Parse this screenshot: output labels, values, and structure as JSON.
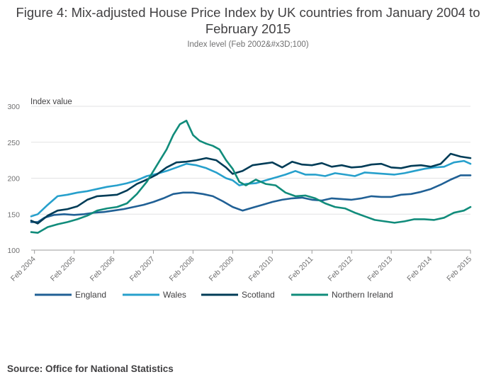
{
  "chart_data": {
    "type": "line",
    "title": "Figure 4: Mix-adjusted House Price Index by UK countries from January 2004 to February 2015",
    "subtitle": "Index level (Feb 2002&#x3D;100)",
    "ylabel": "Index value",
    "xlabel": "",
    "ylim": [
      100,
      300
    ],
    "yticks": [
      100,
      150,
      200,
      250,
      300
    ],
    "x_start": "2004-01",
    "x_end": "2015-02",
    "xticks": [
      "Feb 2004",
      "Feb 2005",
      "Feb 2006",
      "Feb 2007",
      "Feb 2008",
      "Feb 2009",
      "Feb 2010",
      "Feb 2011",
      "Feb 2012",
      "Feb 2013",
      "Feb 2014",
      "Feb 2015"
    ],
    "grid": true,
    "legend_position": "bottom",
    "series": [
      {
        "name": "England",
        "color": "#206095",
        "points": [
          [
            "2004-01",
            139
          ],
          [
            "2004-03",
            139
          ],
          [
            "2004-05",
            145
          ],
          [
            "2004-08",
            149
          ],
          [
            "2004-11",
            150
          ],
          [
            "2005-02",
            149
          ],
          [
            "2005-05",
            150
          ],
          [
            "2005-08",
            152
          ],
          [
            "2005-11",
            153
          ],
          [
            "2006-02",
            155
          ],
          [
            "2006-05",
            157
          ],
          [
            "2006-08",
            160
          ],
          [
            "2006-11",
            163
          ],
          [
            "2007-02",
            167
          ],
          [
            "2007-05",
            172
          ],
          [
            "2007-08",
            178
          ],
          [
            "2007-11",
            180
          ],
          [
            "2008-02",
            180
          ],
          [
            "2008-05",
            178
          ],
          [
            "2008-08",
            175
          ],
          [
            "2008-11",
            168
          ],
          [
            "2009-02",
            160
          ],
          [
            "2009-05",
            155
          ],
          [
            "2009-08",
            159
          ],
          [
            "2009-11",
            163
          ],
          [
            "2010-02",
            167
          ],
          [
            "2010-05",
            170
          ],
          [
            "2010-08",
            172
          ],
          [
            "2010-11",
            173
          ],
          [
            "2011-02",
            170
          ],
          [
            "2011-05",
            169
          ],
          [
            "2011-08",
            172
          ],
          [
            "2011-11",
            171
          ],
          [
            "2012-02",
            170
          ],
          [
            "2012-05",
            172
          ],
          [
            "2012-08",
            175
          ],
          [
            "2012-11",
            174
          ],
          [
            "2013-02",
            174
          ],
          [
            "2013-05",
            177
          ],
          [
            "2013-08",
            178
          ],
          [
            "2013-11",
            181
          ],
          [
            "2014-02",
            185
          ],
          [
            "2014-05",
            191
          ],
          [
            "2014-08",
            198
          ],
          [
            "2014-11",
            204
          ],
          [
            "2015-02",
            204
          ]
        ]
      },
      {
        "name": "Wales",
        "color": "#27A0CC",
        "points": [
          [
            "2004-01",
            147
          ],
          [
            "2004-03",
            150
          ],
          [
            "2004-06",
            163
          ],
          [
            "2004-09",
            175
          ],
          [
            "2004-12",
            177
          ],
          [
            "2005-03",
            180
          ],
          [
            "2005-06",
            182
          ],
          [
            "2005-09",
            185
          ],
          [
            "2005-12",
            188
          ],
          [
            "2006-03",
            190
          ],
          [
            "2006-06",
            193
          ],
          [
            "2006-09",
            197
          ],
          [
            "2006-12",
            203
          ],
          [
            "2007-03",
            206
          ],
          [
            "2007-06",
            210
          ],
          [
            "2007-09",
            215
          ],
          [
            "2007-12",
            220
          ],
          [
            "2008-03",
            218
          ],
          [
            "2008-06",
            214
          ],
          [
            "2008-09",
            208
          ],
          [
            "2008-12",
            200
          ],
          [
            "2009-02",
            197
          ],
          [
            "2009-04",
            190
          ],
          [
            "2009-06",
            192
          ],
          [
            "2009-09",
            193
          ],
          [
            "2009-12",
            197
          ],
          [
            "2010-03",
            201
          ],
          [
            "2010-06",
            205
          ],
          [
            "2010-09",
            210
          ],
          [
            "2010-12",
            205
          ],
          [
            "2011-03",
            205
          ],
          [
            "2011-06",
            203
          ],
          [
            "2011-09",
            207
          ],
          [
            "2011-12",
            205
          ],
          [
            "2012-03",
            203
          ],
          [
            "2012-06",
            208
          ],
          [
            "2012-09",
            207
          ],
          [
            "2012-12",
            206
          ],
          [
            "2013-03",
            205
          ],
          [
            "2013-06",
            207
          ],
          [
            "2013-09",
            210
          ],
          [
            "2013-12",
            213
          ],
          [
            "2014-03",
            215
          ],
          [
            "2014-06",
            216
          ],
          [
            "2014-09",
            222
          ],
          [
            "2014-12",
            224
          ],
          [
            "2015-02",
            220
          ]
        ]
      },
      {
        "name": "Scotland",
        "color": "#003C57",
        "points": [
          [
            "2004-01",
            141
          ],
          [
            "2004-03",
            137
          ],
          [
            "2004-06",
            148
          ],
          [
            "2004-09",
            155
          ],
          [
            "2004-12",
            157
          ],
          [
            "2005-03",
            161
          ],
          [
            "2005-06",
            170
          ],
          [
            "2005-09",
            175
          ],
          [
            "2005-12",
            176
          ],
          [
            "2006-03",
            177
          ],
          [
            "2006-06",
            183
          ],
          [
            "2006-09",
            192
          ],
          [
            "2006-12",
            198
          ],
          [
            "2007-03",
            205
          ],
          [
            "2007-06",
            215
          ],
          [
            "2007-09",
            222
          ],
          [
            "2007-12",
            223
          ],
          [
            "2008-03",
            225
          ],
          [
            "2008-06",
            228
          ],
          [
            "2008-09",
            225
          ],
          [
            "2008-12",
            215
          ],
          [
            "2009-02",
            206
          ],
          [
            "2009-05",
            210
          ],
          [
            "2009-08",
            218
          ],
          [
            "2009-11",
            220
          ],
          [
            "2010-02",
            222
          ],
          [
            "2010-05",
            215
          ],
          [
            "2010-08",
            223
          ],
          [
            "2010-11",
            219
          ],
          [
            "2011-02",
            218
          ],
          [
            "2011-05",
            221
          ],
          [
            "2011-08",
            216
          ],
          [
            "2011-11",
            218
          ],
          [
            "2012-02",
            215
          ],
          [
            "2012-05",
            216
          ],
          [
            "2012-08",
            219
          ],
          [
            "2012-11",
            220
          ],
          [
            "2013-02",
            215
          ],
          [
            "2013-05",
            214
          ],
          [
            "2013-08",
            217
          ],
          [
            "2013-11",
            218
          ],
          [
            "2014-02",
            216
          ],
          [
            "2014-05",
            220
          ],
          [
            "2014-08",
            234
          ],
          [
            "2014-11",
            230
          ],
          [
            "2015-02",
            228
          ]
        ]
      },
      {
        "name": "Northern Ireland",
        "color": "#118C7B",
        "points": [
          [
            "2004-01",
            125
          ],
          [
            "2004-03",
            124
          ],
          [
            "2004-06",
            132
          ],
          [
            "2004-09",
            136
          ],
          [
            "2004-12",
            139
          ],
          [
            "2005-03",
            143
          ],
          [
            "2005-06",
            148
          ],
          [
            "2005-09",
            155
          ],
          [
            "2005-12",
            158
          ],
          [
            "2006-03",
            160
          ],
          [
            "2006-06",
            165
          ],
          [
            "2006-09",
            178
          ],
          [
            "2006-12",
            195
          ],
          [
            "2007-02",
            210
          ],
          [
            "2007-04",
            225
          ],
          [
            "2007-06",
            240
          ],
          [
            "2007-08",
            260
          ],
          [
            "2007-10",
            275
          ],
          [
            "2007-12",
            280
          ],
          [
            "2008-02",
            260
          ],
          [
            "2008-04",
            252
          ],
          [
            "2008-06",
            248
          ],
          [
            "2008-08",
            245
          ],
          [
            "2008-10",
            240
          ],
          [
            "2008-12",
            225
          ],
          [
            "2009-02",
            213
          ],
          [
            "2009-04",
            195
          ],
          [
            "2009-06",
            190
          ],
          [
            "2009-09",
            198
          ],
          [
            "2009-12",
            192
          ],
          [
            "2010-03",
            190
          ],
          [
            "2010-06",
            180
          ],
          [
            "2010-09",
            175
          ],
          [
            "2010-12",
            176
          ],
          [
            "2011-03",
            172
          ],
          [
            "2011-06",
            165
          ],
          [
            "2011-09",
            160
          ],
          [
            "2011-12",
            158
          ],
          [
            "2012-03",
            152
          ],
          [
            "2012-06",
            147
          ],
          [
            "2012-09",
            142
          ],
          [
            "2012-12",
            140
          ],
          [
            "2013-03",
            138
          ],
          [
            "2013-06",
            140
          ],
          [
            "2013-09",
            143
          ],
          [
            "2013-12",
            143
          ],
          [
            "2014-03",
            142
          ],
          [
            "2014-06",
            145
          ],
          [
            "2014-09",
            152
          ],
          [
            "2014-12",
            155
          ],
          [
            "2015-02",
            160
          ]
        ]
      }
    ],
    "source": "Source: Office for National Statistics"
  }
}
